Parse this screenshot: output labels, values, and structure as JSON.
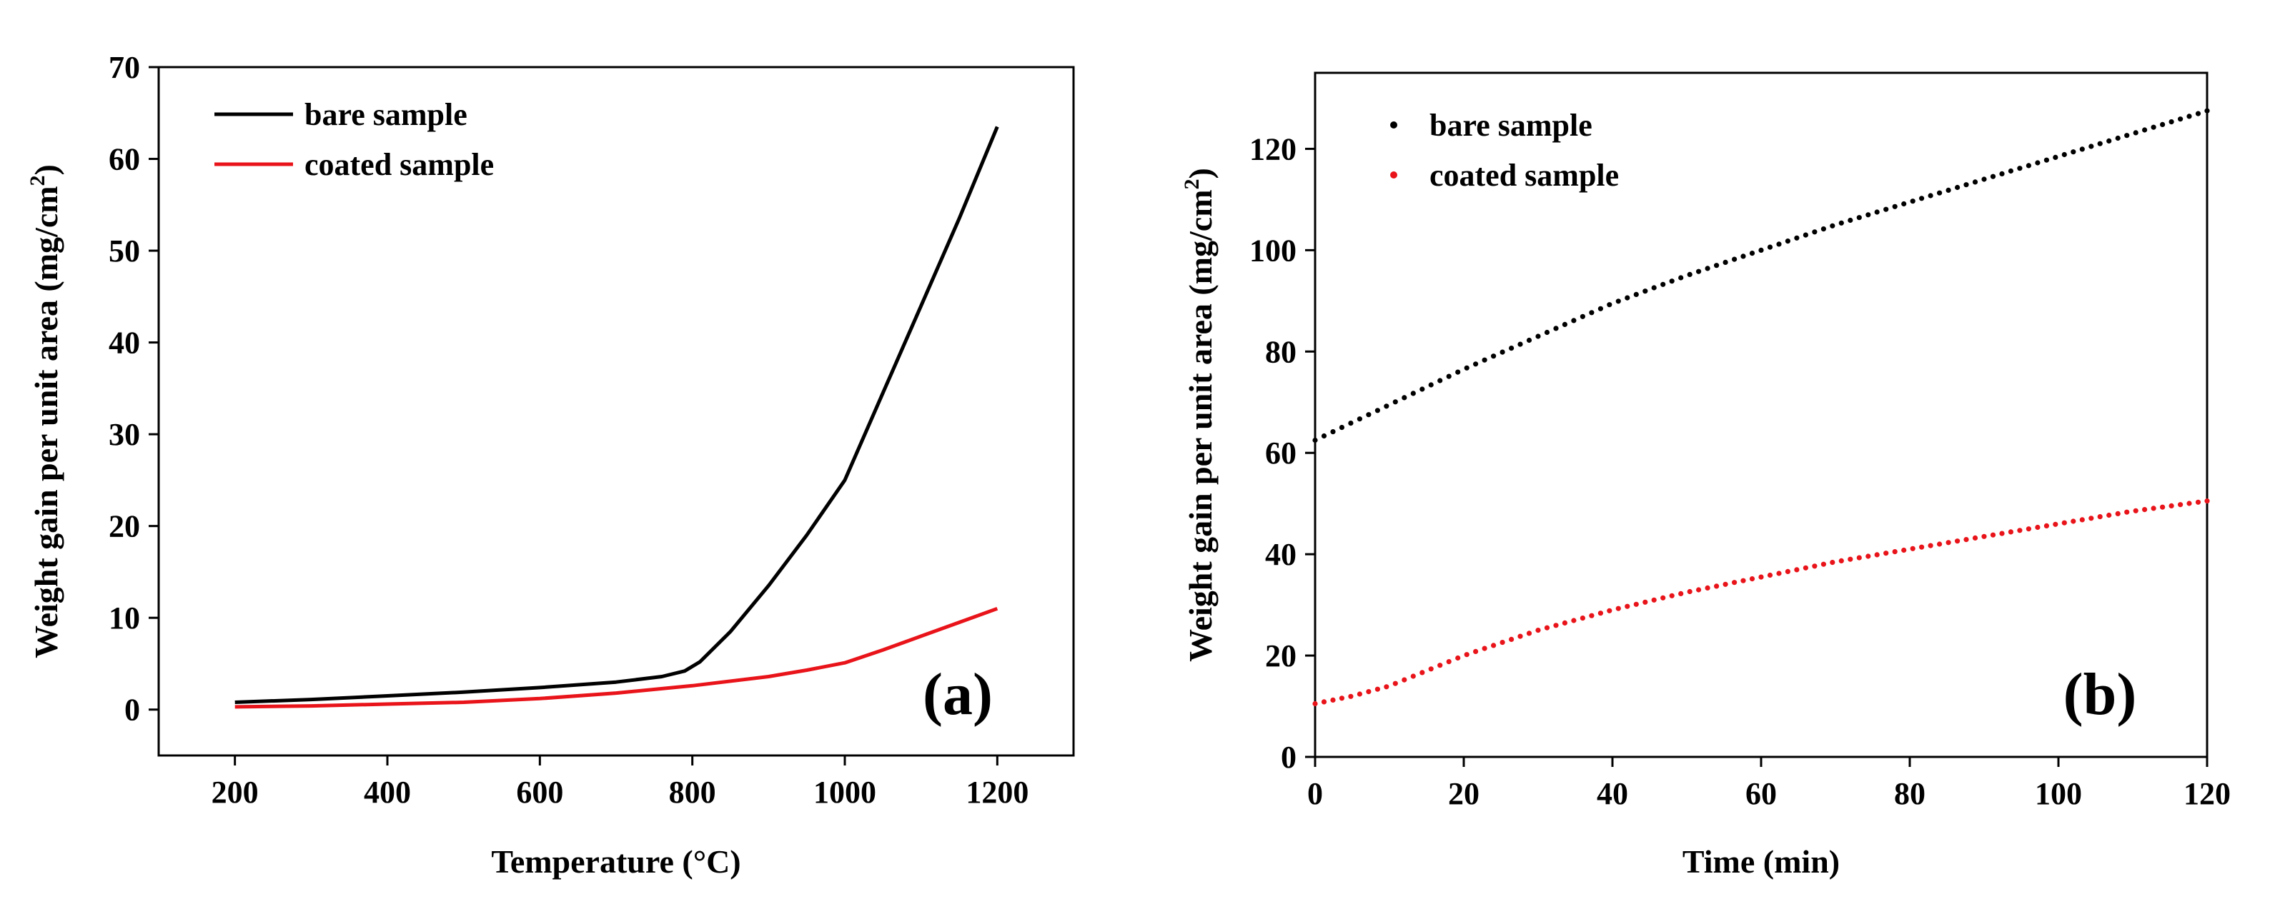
{
  "chart_data": [
    {
      "id": "a",
      "type": "line",
      "panel_label": "(a)",
      "xlabel": "Temperature (°C)",
      "ylabel_main": "Weight gain per unit area (mg/cm",
      "ylabel_sup": "2",
      "ylabel_close": ")",
      "xlim": [
        100,
        1300
      ],
      "ylim": [
        -5,
        70
      ],
      "xticks": [
        200,
        400,
        600,
        800,
        1000,
        1200
      ],
      "yticks": [
        0,
        10,
        20,
        30,
        40,
        50,
        60,
        70
      ],
      "legend_position": "top-left",
      "grid": false,
      "series": [
        {
          "name": "bare sample",
          "color": "#000000",
          "x": [
            200,
            300,
            400,
            500,
            600,
            700,
            760,
            790,
            810,
            850,
            900,
            950,
            1000,
            1050,
            1100,
            1150,
            1200
          ],
          "y": [
            0.8,
            1.1,
            1.5,
            1.9,
            2.4,
            3.0,
            3.6,
            4.2,
            5.2,
            8.5,
            13.5,
            19.0,
            25.0,
            34.5,
            44.0,
            53.5,
            63.5
          ]
        },
        {
          "name": "coated sample",
          "color": "#e8141a",
          "x": [
            200,
            300,
            400,
            500,
            600,
            700,
            800,
            900,
            950,
            1000,
            1050,
            1100,
            1150,
            1200
          ],
          "y": [
            0.3,
            0.4,
            0.6,
            0.8,
            1.2,
            1.8,
            2.6,
            3.6,
            4.3,
            5.1,
            6.5,
            8.0,
            9.5,
            11.0
          ]
        }
      ]
    },
    {
      "id": "b",
      "type": "scatter",
      "panel_label": "(b)",
      "xlabel": "Time (min)",
      "ylabel_main": "Weight gain per unit area (mg/cm",
      "ylabel_sup": "2",
      "ylabel_close": ")",
      "xlim": [
        0,
        120
      ],
      "ylim": [
        0,
        135
      ],
      "xticks": [
        0,
        20,
        40,
        60,
        80,
        100,
        120
      ],
      "yticks": [
        0,
        20,
        40,
        60,
        80,
        100,
        120
      ],
      "legend_position": "top-left",
      "grid": false,
      "series": [
        {
          "name": "bare sample",
          "color": "#000000",
          "x": [
            0,
            10,
            20,
            30,
            40,
            50,
            60,
            70,
            80,
            90,
            100,
            110,
            120
          ],
          "y": [
            62.5,
            69.5,
            76.5,
            83.0,
            89.5,
            95.0,
            100.0,
            105.0,
            109.5,
            114.0,
            118.5,
            123.0,
            127.5
          ]
        },
        {
          "name": "coated sample",
          "color": "#e8141a",
          "x": [
            0,
            5,
            10,
            15,
            20,
            25,
            30,
            35,
            40,
            50,
            60,
            70,
            80,
            90,
            100,
            110,
            120
          ],
          "y": [
            10.5,
            12.0,
            14.0,
            17.0,
            20.0,
            22.5,
            25.0,
            27.0,
            29.0,
            32.5,
            35.5,
            38.5,
            41.0,
            43.5,
            46.0,
            48.5,
            50.5
          ]
        }
      ]
    }
  ]
}
